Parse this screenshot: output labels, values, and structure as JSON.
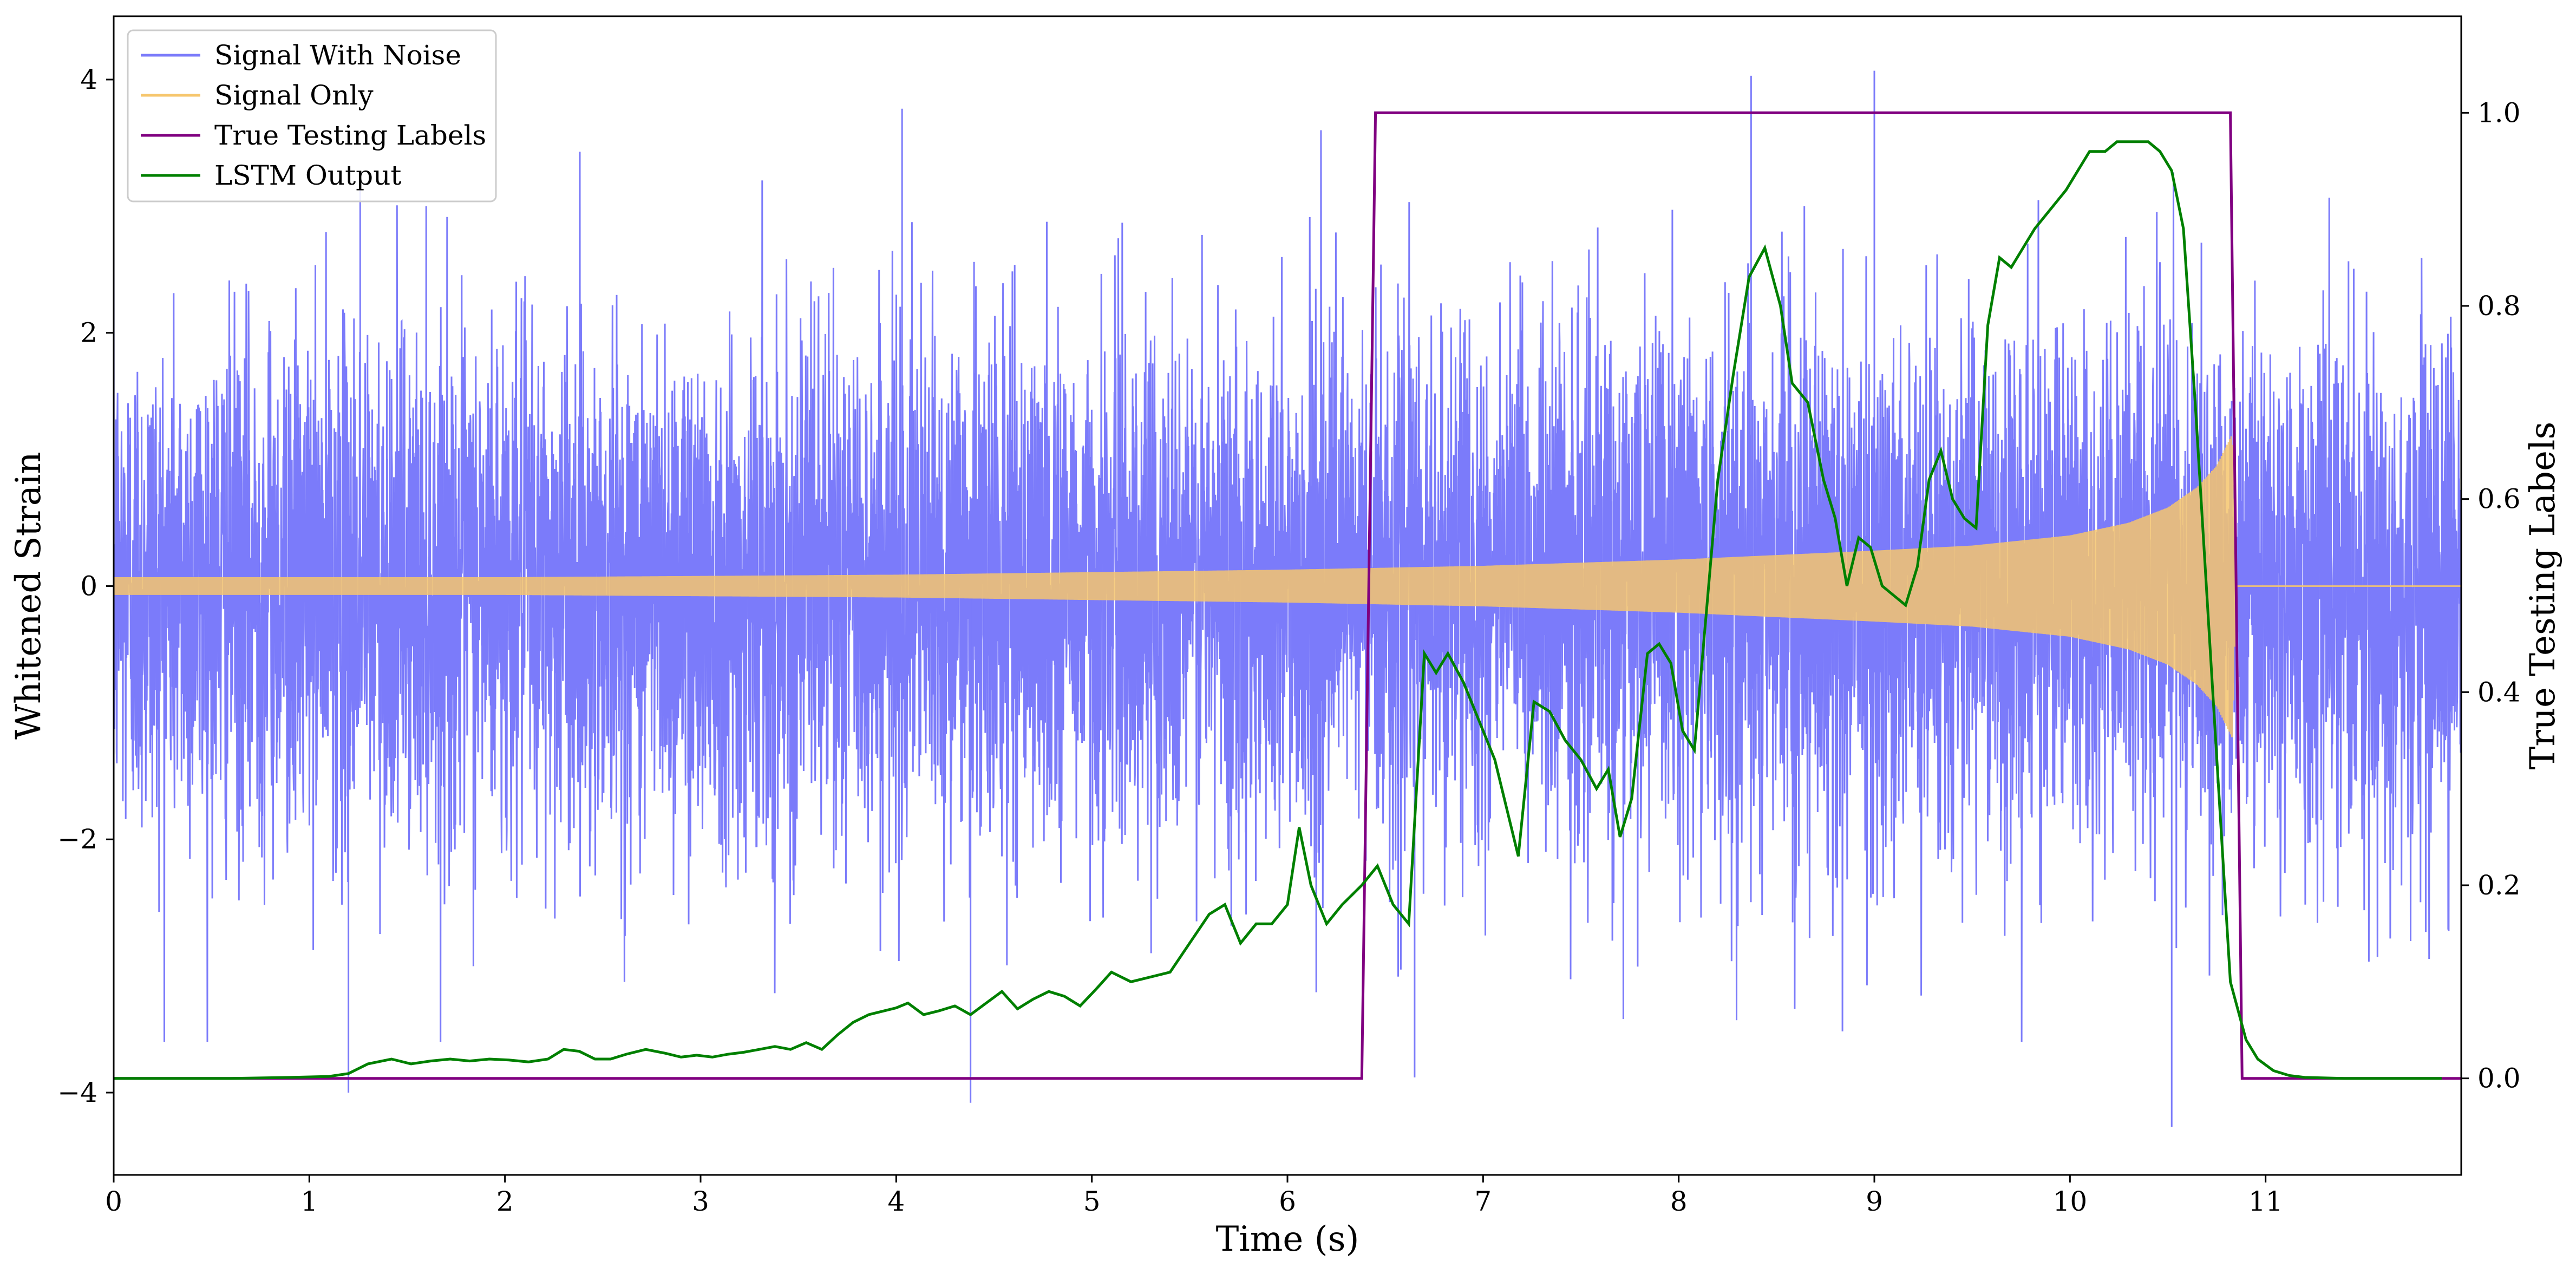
{
  "chart_data": {
    "type": "line",
    "xlabel": "Time (s)",
    "ylabel_left": "Whitened Strain",
    "ylabel_right": "True Testing Labels",
    "xlim": [
      0,
      12.0
    ],
    "ylim_left": [
      -4.65,
      4.5
    ],
    "ylim_right": [
      -0.1,
      1.1
    ],
    "x_ticks": [
      0,
      1,
      2,
      3,
      4,
      5,
      6,
      7,
      8,
      9,
      10,
      11
    ],
    "x_tick_labels": [
      "0",
      "1",
      "2",
      "3",
      "4",
      "5",
      "6",
      "7",
      "8",
      "9",
      "10",
      "11"
    ],
    "y_left_ticks": [
      -4,
      -2,
      0,
      2,
      4
    ],
    "y_left_tick_labels": [
      "−4",
      "−2",
      "0",
      "2",
      "4"
    ],
    "y_right_ticks": [
      0.0,
      0.2,
      0.4,
      0.6,
      0.8,
      1.0
    ],
    "y_right_tick_labels": [
      "0.0",
      "0.2",
      "0.4",
      "0.6",
      "0.8",
      "1.0"
    ],
    "grid": false,
    "legend_position": "top-left",
    "series": [
      {
        "name": "Signal With Noise",
        "axis": "left",
        "color": "#7b7bfa",
        "description_kind": "dense noise band",
        "sigma": 1.0,
        "x_range": [
          0,
          12.0
        ],
        "peaks": [
          [
            1.2,
            -4.0
          ],
          [
            4.38,
            -4.08
          ],
          [
            6.65,
            -3.88
          ],
          [
            8.37,
            4.03
          ],
          [
            9.0,
            4.07
          ],
          [
            10.52,
            -4.27
          ],
          [
            4.03,
            3.77
          ],
          [
            1.26,
            3.2
          ]
        ]
      },
      {
        "name": "Signal Only",
        "axis": "left",
        "color": "#f6c66d",
        "description_kind": "chirp envelope",
        "envelope": [
          [
            0,
            0.07
          ],
          [
            2,
            0.07
          ],
          [
            4,
            0.09
          ],
          [
            5,
            0.11
          ],
          [
            6,
            0.13
          ],
          [
            7,
            0.16
          ],
          [
            8,
            0.21
          ],
          [
            9,
            0.28
          ],
          [
            9.5,
            0.32
          ],
          [
            10,
            0.4
          ],
          [
            10.3,
            0.5
          ],
          [
            10.5,
            0.62
          ],
          [
            10.65,
            0.78
          ],
          [
            10.75,
            0.95
          ],
          [
            10.83,
            1.2
          ],
          [
            10.85,
            0.0
          ],
          [
            12.0,
            0.0
          ]
        ]
      },
      {
        "name": "True Testing Labels",
        "axis": "right",
        "color": "#800080",
        "x": [
          0,
          6.38,
          6.45,
          10.82,
          10.88,
          12.0
        ],
        "y": [
          0,
          0,
          1.0,
          1.0,
          0,
          0
        ]
      },
      {
        "name": "LSTM Output",
        "axis": "right",
        "color": "#008000",
        "x": [
          0,
          0.6,
          0.9,
          1.1,
          1.2,
          1.3,
          1.42,
          1.52,
          1.62,
          1.72,
          1.82,
          1.92,
          2.02,
          2.12,
          2.22,
          2.3,
          2.38,
          2.46,
          2.54,
          2.62,
          2.72,
          2.82,
          2.9,
          2.98,
          3.06,
          3.14,
          3.22,
          3.3,
          3.38,
          3.46,
          3.54,
          3.62,
          3.7,
          3.78,
          3.86,
          3.94,
          4.0,
          4.06,
          4.14,
          4.22,
          4.3,
          4.38,
          4.46,
          4.54,
          4.62,
          4.7,
          4.78,
          4.86,
          4.94,
          5.02,
          5.1,
          5.2,
          5.3,
          5.4,
          5.5,
          5.6,
          5.68,
          5.76,
          5.84,
          5.92,
          6.0,
          6.06,
          6.12,
          6.2,
          6.28,
          6.38,
          6.46,
          6.54,
          6.62,
          6.7,
          6.76,
          6.82,
          6.9,
          6.98,
          7.06,
          7.12,
          7.18,
          7.26,
          7.34,
          7.42,
          7.5,
          7.58,
          7.64,
          7.7,
          7.76,
          7.84,
          7.9,
          7.96,
          8.02,
          8.08,
          8.14,
          8.2,
          8.28,
          8.36,
          8.44,
          8.52,
          8.58,
          8.66,
          8.74,
          8.8,
          8.86,
          8.92,
          8.98,
          9.04,
          9.1,
          9.16,
          9.22,
          9.28,
          9.34,
          9.4,
          9.46,
          9.52,
          9.58,
          9.64,
          9.7,
          9.76,
          9.82,
          9.9,
          9.98,
          10.04,
          10.1,
          10.18,
          10.24,
          10.32,
          10.4,
          10.46,
          10.52,
          10.58,
          10.64,
          10.7,
          10.76,
          10.82,
          10.9,
          10.96,
          11.04,
          11.12,
          11.2,
          11.4,
          11.6,
          11.8,
          11.9
        ],
        "y": [
          0.0,
          0.0,
          0.001,
          0.002,
          0.005,
          0.015,
          0.02,
          0.015,
          0.018,
          0.02,
          0.018,
          0.02,
          0.019,
          0.017,
          0.02,
          0.03,
          0.028,
          0.02,
          0.02,
          0.025,
          0.03,
          0.026,
          0.022,
          0.024,
          0.022,
          0.025,
          0.027,
          0.03,
          0.033,
          0.03,
          0.037,
          0.03,
          0.045,
          0.058,
          0.066,
          0.07,
          0.073,
          0.078,
          0.066,
          0.07,
          0.075,
          0.066,
          0.078,
          0.09,
          0.072,
          0.082,
          0.09,
          0.085,
          0.075,
          0.092,
          0.11,
          0.1,
          0.105,
          0.11,
          0.14,
          0.17,
          0.18,
          0.14,
          0.16,
          0.16,
          0.18,
          0.26,
          0.2,
          0.16,
          0.18,
          0.2,
          0.22,
          0.18,
          0.16,
          0.44,
          0.42,
          0.44,
          0.41,
          0.37,
          0.33,
          0.28,
          0.23,
          0.39,
          0.38,
          0.35,
          0.33,
          0.3,
          0.32,
          0.25,
          0.29,
          0.44,
          0.45,
          0.43,
          0.36,
          0.34,
          0.48,
          0.62,
          0.73,
          0.83,
          0.86,
          0.8,
          0.72,
          0.7,
          0.62,
          0.58,
          0.51,
          0.56,
          0.55,
          0.51,
          0.5,
          0.49,
          0.53,
          0.62,
          0.65,
          0.6,
          0.58,
          0.57,
          0.78,
          0.85,
          0.84,
          0.86,
          0.88,
          0.9,
          0.92,
          0.94,
          0.96,
          0.96,
          0.97,
          0.97,
          0.97,
          0.96,
          0.94,
          0.88,
          0.7,
          0.5,
          0.3,
          0.1,
          0.04,
          0.02,
          0.008,
          0.003,
          0.001,
          0.0,
          0.0,
          0.0,
          0.0
        ]
      }
    ]
  }
}
